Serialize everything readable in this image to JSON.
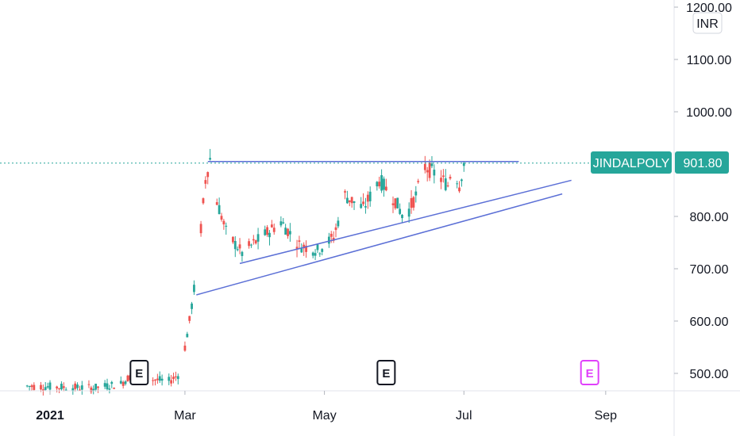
{
  "chart_data": {
    "type": "candlestick",
    "symbol": "JINDALPOLY",
    "last_price": "901.80",
    "currency": "INR",
    "y_axis": {
      "ticks": [
        "1200.00",
        "1100.00",
        "1000.00",
        "800.00",
        "700.00",
        "600.00",
        "500.00"
      ],
      "range": [
        455,
        1210
      ]
    },
    "x_axis": {
      "ticks": [
        {
          "label": "2021",
          "bold": true,
          "date": "2021-01-01"
        },
        {
          "label": "Mar",
          "bold": false,
          "date": "2021-03-01"
        },
        {
          "label": "May",
          "bold": false,
          "date": "2021-05-01"
        },
        {
          "label": "Jul",
          "bold": false,
          "date": "2021-07-01"
        },
        {
          "label": "Sep",
          "bold": false,
          "date": "2021-09-01"
        }
      ]
    },
    "earnings_markers": [
      {
        "label": "E",
        "date": "2021-02-09",
        "color": "#131722"
      },
      {
        "label": "E",
        "date": "2021-05-28",
        "color": "#131722"
      },
      {
        "label": "E",
        "date": "2021-08-25",
        "color": "#e040fb"
      }
    ],
    "trendlines": [
      {
        "from": [
          "2021-03-11",
          905
        ],
        "to": [
          "2021-07-25",
          905
        ]
      },
      {
        "from": [
          "2021-03-25",
          710
        ],
        "to": [
          "2021-08-17",
          869
        ]
      },
      {
        "from": [
          "2021-03-06",
          650
        ],
        "to": [
          "2021-08-13",
          843
        ]
      }
    ],
    "price_line": 901.8,
    "colors": {
      "up": "#26a69a",
      "down": "#ef5350",
      "trendline": "#5b6fd6",
      "accent": "#26a69a"
    }
  }
}
